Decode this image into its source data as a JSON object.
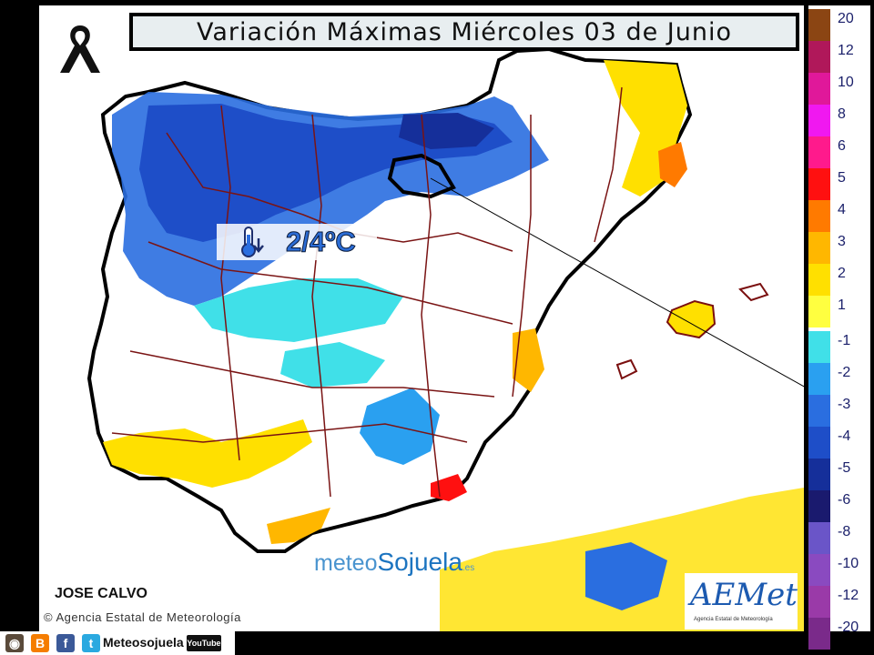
{
  "title": "Variación Máximas Miércoles 03 de Junio",
  "annotation": {
    "value": "2/4ºC",
    "icon": "thermometer-down-icon"
  },
  "author": "JOSE CALVO",
  "agency_credit": "© Agencia Estatal de Meteorología",
  "logo": {
    "part1": "meteo",
    "part2": "Sojuela",
    "part3": ".es"
  },
  "aemet": {
    "word": "AEMet",
    "subtitle": "Agencia Estatal de Meteorología"
  },
  "social": {
    "name": "Meteosojuela",
    "youtube": "YouTube",
    "icons": [
      "instagram-icon",
      "blogger-icon",
      "facebook-icon",
      "twitter-icon",
      "youtube-icon"
    ]
  },
  "legend": {
    "positive": [
      {
        "label": "20",
        "color": "#8b4513"
      },
      {
        "label": "12",
        "color": "#b0185a"
      },
      {
        "label": "10",
        "color": "#e0189a"
      },
      {
        "label": "8",
        "color": "#f018f0"
      },
      {
        "label": "6",
        "color": "#ff1a8c"
      },
      {
        "label": "5",
        "color": "#ff1010"
      },
      {
        "label": "4",
        "color": "#ff7a00"
      },
      {
        "label": "3",
        "color": "#ffb700"
      },
      {
        "label": "2",
        "color": "#ffe000"
      },
      {
        "label": "1",
        "color": "#ffff40"
      }
    ],
    "negative": [
      {
        "label": "-1",
        "color": "#40e0e8"
      },
      {
        "label": "-2",
        "color": "#2aa0f0"
      },
      {
        "label": "-3",
        "color": "#2a6ee0"
      },
      {
        "label": "-4",
        "color": "#1e4ec8"
      },
      {
        "label": "-5",
        "color": "#152f9a"
      },
      {
        "label": "-6",
        "color": "#1a1a6e"
      },
      {
        "label": "-8",
        "color": "#6a55c8"
      },
      {
        "label": "-10",
        "color": "#8a4ac0"
      },
      {
        "label": "-12",
        "color": "#9a3aa8"
      },
      {
        "label": "-20",
        "color": "#7a2a8a"
      }
    ]
  }
}
